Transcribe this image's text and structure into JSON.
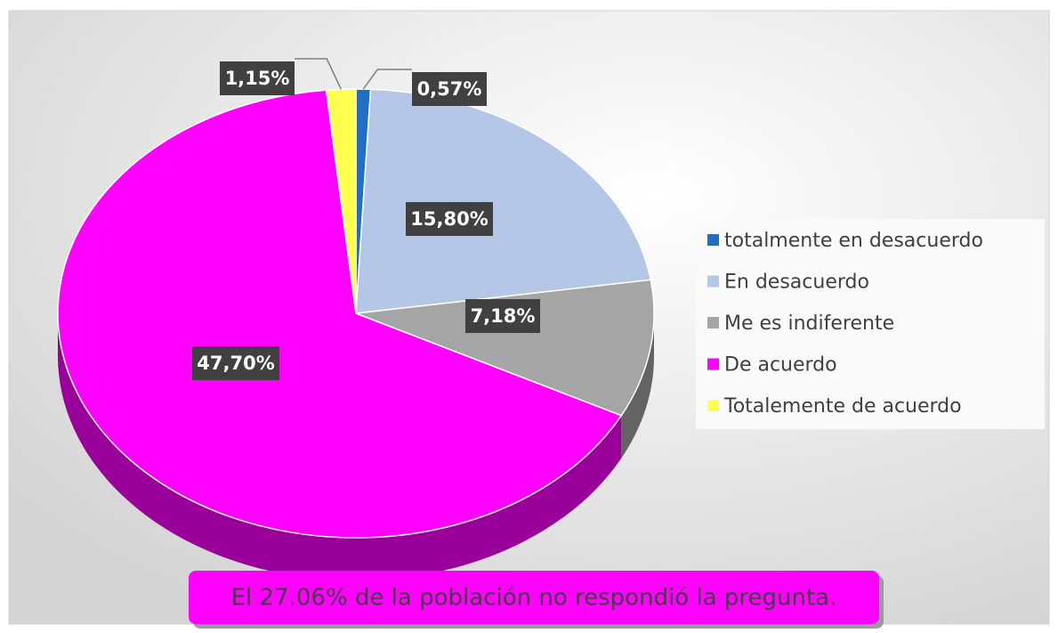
{
  "chart_data": {
    "type": "pie",
    "categories": [
      "totalmente en desacuerdo",
      "En desacuerdo",
      "Me es indiferente",
      "De acuerdo",
      "Totalemente de acuerdo"
    ],
    "values": [
      0.57,
      15.8,
      7.18,
      47.7,
      1.15
    ],
    "value_labels": [
      "0,57%",
      "15,80%",
      "7,18%",
      "47,70%",
      "1,15%"
    ],
    "colors": [
      "#1f6fc5",
      "#b4c7e7",
      "#a5a5a5",
      "#ff00ff",
      "#ffff4f"
    ],
    "legend": "right",
    "annotation": "El 27.06% de la población no respondió la pregunta."
  }
}
